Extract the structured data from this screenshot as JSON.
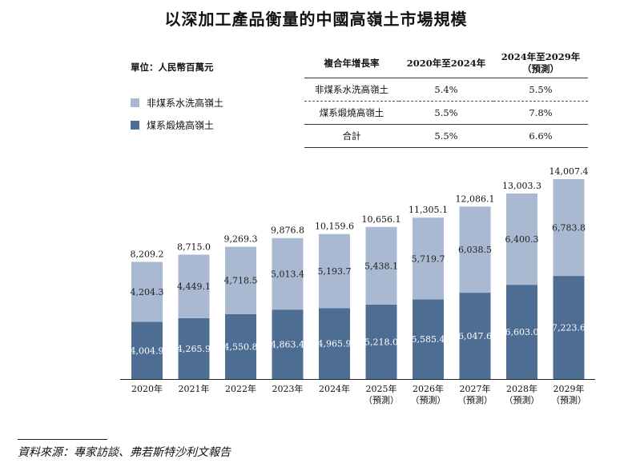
{
  "title": "以深加工產品衡量的中國高嶺土市場規模",
  "unit_label": "單位：人民幣百萬元",
  "legend": [
    {
      "name": "非煤系水洗高嶺土",
      "color": "#a9b9d2"
    },
    {
      "name": "煤系煅燒高嶺土",
      "color": "#4d6d93"
    }
  ],
  "cagr_table": {
    "header": [
      "複合年增長率",
      "2020年至2024年",
      "2024年至2029年",
      "（預測）"
    ],
    "rows": [
      [
        "非煤系水洗高嶺土",
        "5.4%",
        "5.5%"
      ],
      [
        "煤系煅燒高嶺土",
        "5.5%",
        "7.8%"
      ],
      [
        "合計",
        "5.5%",
        "6.6%"
      ]
    ]
  },
  "chart_data": {
    "type": "bar",
    "stacked": true,
    "categories": [
      "2020年",
      "2021年",
      "2022年",
      "2023年",
      "2024年",
      "2025年",
      "2026年",
      "2027年",
      "2028年",
      "2029年"
    ],
    "category_sublabels": [
      "",
      "",
      "",
      "",
      "",
      "（預測）",
      "（預測）",
      "（預測）",
      "（預測）",
      "（預測）"
    ],
    "series": [
      {
        "name": "煤系煅燒高嶺土",
        "color": "#4d6d93",
        "values": [
          4004.9,
          4265.9,
          4550.8,
          4863.4,
          4965.9,
          5218.0,
          5585.4,
          6047.6,
          6603.0,
          7223.6
        ],
        "labels": [
          "4,004.9",
          "4,265.9",
          "4,550.8",
          "4,863.4",
          "4,965.9",
          "5,218.0",
          "5,585.4",
          "6,047.6",
          "6,603.0",
          "7,223.6"
        ]
      },
      {
        "name": "非煤系水洗高嶺土",
        "color": "#a9b9d2",
        "values": [
          4204.3,
          4449.1,
          4718.5,
          5013.4,
          5193.7,
          5438.1,
          5719.7,
          6038.5,
          6400.3,
          6783.8
        ],
        "labels": [
          "4,204.3",
          "4,449.1",
          "4,718.5",
          "5,013.4",
          "5,193.7",
          "5,438.1",
          "5,719.7",
          "6,038.5",
          "6,400.3",
          "6,783.8"
        ]
      }
    ],
    "totals": [
      8209.2,
      8715.0,
      9269.3,
      9876.8,
      10159.6,
      10656.1,
      11305.1,
      12086.1,
      13003.3,
      14007.4
    ],
    "total_labels": [
      "8,209.2",
      "8,715.0",
      "9,269.3",
      "9,876.8",
      "10,159.6",
      "10,656.1",
      "11,305.1",
      "12,086.1",
      "13,003.3",
      "14,007.4"
    ],
    "ylim": [
      0,
      14007.4
    ],
    "grid": false
  },
  "source": "資料來源：專家訪談、弗若斯特沙利文報告"
}
